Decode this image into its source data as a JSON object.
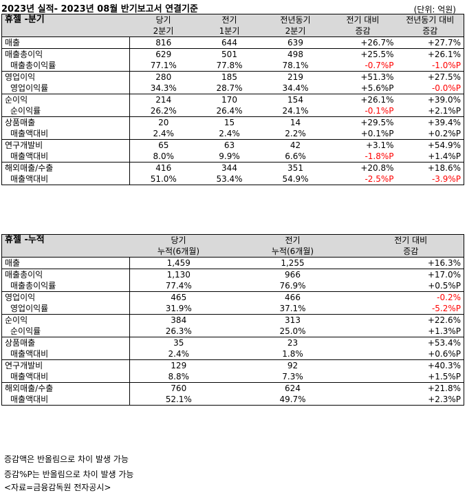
{
  "title": "2023년 실적- 2023년 08월 반기보고서 연결기준",
  "unit": "(단위: 억원)",
  "quarter": {
    "header": {
      "label": "휴젤 -분기",
      "cols": [
        [
          "당기",
          "2분기"
        ],
        [
          "전기",
          "1분기"
        ],
        [
          "전년동기",
          "2분기"
        ],
        [
          "전기 대비",
          "증감"
        ],
        [
          "전년동기 대비",
          "증감"
        ]
      ]
    },
    "groups": [
      [
        [
          "매출",
          "816",
          "644",
          "639",
          "+26.7%",
          "+27.7%"
        ]
      ],
      [
        [
          "매출총이익",
          "629",
          "501",
          "498",
          "+25.5%",
          "+26.1%"
        ],
        [
          "매출총이익률",
          "77.1%",
          "77.8%",
          "78.1%",
          "-0.7%P",
          "-1.0%P"
        ]
      ],
      [
        [
          "영업이익",
          "280",
          "185",
          "219",
          "+51.3%",
          "+27.5%"
        ],
        [
          "영업이익률",
          "34.3%",
          "28.7%",
          "34.4%",
          "+5.6%P",
          "-0.0%P"
        ]
      ],
      [
        [
          "순이익",
          "214",
          "170",
          "154",
          "+26.1%",
          "+39.0%"
        ],
        [
          "순이익률",
          "26.2%",
          "26.4%",
          "24.1%",
          "-0.1%P",
          "+2.1%P"
        ]
      ],
      [
        [
          "상품매출",
          "20",
          "15",
          "14",
          "+29.5%",
          "+39.4%"
        ],
        [
          "매출액대비",
          "2.4%",
          "2.4%",
          "2.2%",
          "+0.1%P",
          "+0.2%P"
        ]
      ],
      [
        [
          "연구개발비",
          "65",
          "63",
          "42",
          "+3.1%",
          "+54.9%"
        ],
        [
          "매출액대비",
          "8.0%",
          "9.9%",
          "6.6%",
          "-1.8%P",
          "+1.4%P"
        ]
      ],
      [
        [
          "해외매출/수출",
          "416",
          "344",
          "351",
          "+20.8%",
          "+18.6%"
        ],
        [
          "매출액대비",
          "51.0%",
          "53.4%",
          "54.9%",
          "-2.5%P",
          "-3.9%P"
        ]
      ]
    ]
  },
  "cumulative": {
    "header": {
      "label": "휴젤 -누적",
      "cols": [
        [
          "당기",
          "누적(6개월)"
        ],
        [
          "전기",
          "누적(6개월)"
        ],
        [
          "전기 대비",
          "증감"
        ]
      ]
    },
    "groups": [
      [
        [
          "매출",
          "1,459",
          "1,255",
          "+16.3%"
        ]
      ],
      [
        [
          "매출총이익",
          "1,130",
          "966",
          "+17.0%"
        ],
        [
          "매출총이익률",
          "77.4%",
          "76.9%",
          "+0.5%P"
        ]
      ],
      [
        [
          "영업이익",
          "465",
          "466",
          "-0.2%"
        ],
        [
          "영업이익률",
          "31.9%",
          "37.1%",
          "-5.2%P"
        ]
      ],
      [
        [
          "순이익",
          "384",
          "313",
          "+22.6%"
        ],
        [
          "순이익률",
          "26.3%",
          "25.0%",
          "+1.3%P"
        ]
      ],
      [
        [
          "상품매출",
          "35",
          "23",
          "+53.4%"
        ],
        [
          "매출액대비",
          "2.4%",
          "1.8%",
          "+0.6%P"
        ]
      ],
      [
        [
          "연구개발비",
          "129",
          "92",
          "+40.3%"
        ],
        [
          "매출액대비",
          "8.8%",
          "7.3%",
          "+1.5%P"
        ]
      ],
      [
        [
          "해외매출/수출",
          "760",
          "624",
          "+21.8%"
        ],
        [
          "매출액대비",
          "52.1%",
          "49.7%",
          "+2.3%P"
        ]
      ]
    ]
  },
  "notes": [
    "증감액은 반올림으로 차이 발생 가능",
    "증감%P는 반올림으로 차이 발생 가능",
    "<자료=금융감독원 전자공시>"
  ],
  "colors": {
    "header_bg": "#d9d9d9",
    "negative": "#ff0000"
  }
}
